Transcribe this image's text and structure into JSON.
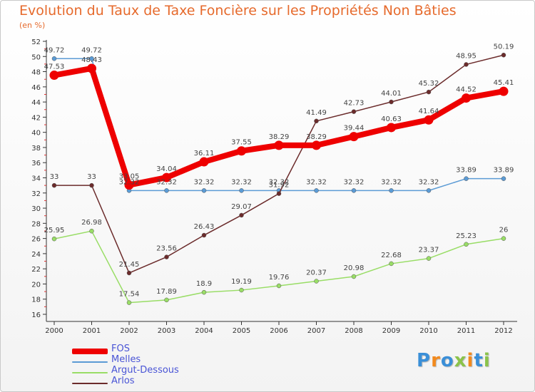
{
  "chart_data": {
    "type": "line",
    "title": "Evolution du Taux de Taxe Foncière sur les Propriétés Non Bâties",
    "unit_label": "(en %)",
    "xlabel": "",
    "ylabel": "",
    "categories": [
      "2000",
      "2001",
      "2002",
      "2003",
      "2004",
      "2005",
      "2006",
      "2007",
      "2008",
      "2009",
      "2010",
      "2011",
      "2012"
    ],
    "ylim": [
      16,
      52
    ],
    "yticks": [
      16,
      18,
      20,
      22,
      24,
      26,
      28,
      30,
      32,
      34,
      36,
      38,
      40,
      42,
      44,
      46,
      48,
      50,
      52
    ],
    "grid": false,
    "legend": "bottom-left",
    "series": [
      {
        "name": "FOS",
        "color": "#ee0000",
        "values": [
          47.53,
          48.43,
          33.05,
          34.04,
          36.11,
          37.55,
          38.29,
          38.29,
          39.44,
          40.63,
          41.64,
          44.52,
          45.41
        ],
        "labels": [
          "47.53",
          "48.43",
          "33.05",
          "34.04",
          "36.11",
          "37.55",
          "38.29",
          "38.29",
          "39.44",
          "40.63",
          "41.64",
          "44.52",
          "45.41"
        ]
      },
      {
        "name": "Melles",
        "color": "#5b9bd5",
        "values": [
          49.72,
          49.72,
          32.32,
          32.32,
          32.32,
          32.32,
          32.32,
          32.32,
          32.32,
          32.32,
          32.32,
          33.89,
          33.89
        ],
        "labels": [
          "49.72",
          "49.72",
          "32.32",
          "32.32",
          "32.32",
          "32.32",
          "32.32",
          "32.32",
          "32.32",
          "32.32",
          "32.32",
          "33.89",
          "33.89"
        ]
      },
      {
        "name": "Argut-Dessous",
        "color": "#99dd66",
        "values": [
          25.95,
          26.98,
          17.54,
          17.89,
          18.9,
          19.19,
          19.76,
          20.37,
          20.98,
          22.68,
          23.37,
          25.23,
          26
        ],
        "labels": [
          "25.95",
          "26.98",
          "17.54",
          "17.89",
          "18.9",
          "19.19",
          "19.76",
          "20.37",
          "20.98",
          "22.68",
          "23.37",
          "25.23",
          "26"
        ]
      },
      {
        "name": "Arlos",
        "color": "#6b2b2b",
        "values": [
          33,
          33,
          21.45,
          23.56,
          26.43,
          29.07,
          31.92,
          41.49,
          42.73,
          44.01,
          45.32,
          48.95,
          50.19
        ],
        "labels": [
          "33",
          "33",
          "21.45",
          "23.56",
          "26.43",
          "29.07",
          "31.92",
          "41.49",
          "42.73",
          "44.01",
          "45.32",
          "48.95",
          "50.19"
        ]
      }
    ]
  },
  "brand": {
    "letters": [
      "P",
      "r",
      "o",
      "x",
      "i",
      "t",
      "i"
    ],
    "colors": [
      "#3a8fd8",
      "#f28a1e",
      "#3a8fd8",
      "#8bc34a",
      "#f28a1e",
      "#3a8fd8",
      "#8bc34a"
    ]
  }
}
